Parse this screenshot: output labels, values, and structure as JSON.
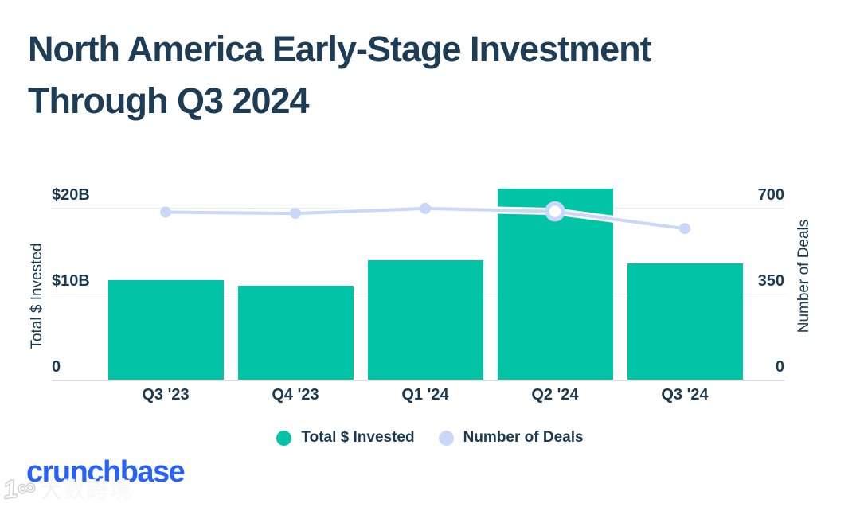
{
  "title": {
    "line1": "North America Early-Stage Investment",
    "line2": "Through Q3 2024"
  },
  "chart_data": {
    "type": "bar",
    "subtype": "combo-bar-line",
    "categories": [
      "Q3 '23",
      "Q4 '23",
      "Q1 '24",
      "Q2 '24",
      "Q3 '24"
    ],
    "series": [
      {
        "name": "Total $ Invested",
        "type": "bar",
        "unit": "USD billions",
        "values": [
          11.6,
          10.9,
          13.9,
          22.2,
          13.5
        ],
        "color": "#01C3A6"
      },
      {
        "name": "Number of Deals",
        "type": "line",
        "values": [
          682,
          677,
          697,
          685,
          615
        ],
        "color": "#C9D8F8",
        "highlight_index": 3
      }
    ],
    "left_axis": {
      "title": "Total $ Invested",
      "ticks": [
        {
          "label": "$20B",
          "value": 20
        },
        {
          "label": "$10B",
          "value": 10
        },
        {
          "label": "0",
          "value": 0
        }
      ],
      "max": 20
    },
    "right_axis": {
      "title": "Number of Deals",
      "ticks": [
        {
          "label": "700",
          "value": 700
        },
        {
          "label": "350",
          "value": 350
        },
        {
          "label": "0",
          "value": 0
        }
      ],
      "max": 700
    },
    "grid": "horizontal",
    "legend_position": "bottom-center",
    "legend": [
      {
        "label": "Total $ Invested",
        "color": "#01C3A6"
      },
      {
        "label": "Number of Deals",
        "color": "#C9D8F8"
      }
    ],
    "colors": {
      "bar": "#01C3A6",
      "line": "#C9D8F8",
      "text": "#1B3A52",
      "title": "#1D3C55",
      "gridline": "#e9e9ec"
    }
  },
  "footer": {
    "brand": "crunchbase",
    "brand_color": "#2961FF",
    "watermark_icon": "1∞",
    "watermark_text": "大数跨境"
  }
}
